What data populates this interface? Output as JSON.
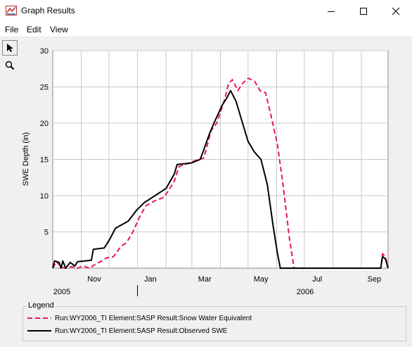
{
  "window": {
    "title": "Graph Results",
    "minimize_glyph": "—",
    "maximize_glyph": "☐",
    "close_glyph": "✕"
  },
  "menu": {
    "items": [
      "File",
      "Edit",
      "View"
    ]
  },
  "toolbar": {
    "tools": [
      "pointer-icon",
      "zoom-icon"
    ]
  },
  "colors": {
    "swe_series": "#e8194e",
    "observed_series": "#000000",
    "grid": "#c8c8c8"
  },
  "chart_data": {
    "type": "line",
    "ylabel": "SWE Depth (in)",
    "ylim": [
      0,
      30
    ],
    "yticks": [
      "5",
      "10",
      "15",
      "20",
      "25",
      "30"
    ],
    "x_range": [
      "2005-10-01",
      "2006-09-30"
    ],
    "x_month_ticks": [
      "Nov",
      "Jan",
      "Mar",
      "May",
      "Jul",
      "Sep"
    ],
    "x_year_labels": [
      "2005",
      "2006"
    ],
    "grid": true,
    "series": [
      {
        "name": "Run:WY2006_TI Element:SASP Result:Snow Water Equivalent",
        "style": "dashed",
        "points": [
          [
            "2005-10-01",
            0
          ],
          [
            "2005-10-05",
            0.9
          ],
          [
            "2005-10-10",
            0.2
          ],
          [
            "2005-10-14",
            0
          ],
          [
            "2005-10-22",
            0.2
          ],
          [
            "2005-10-28",
            0
          ],
          [
            "2005-11-03",
            0.3
          ],
          [
            "2005-11-10",
            0
          ],
          [
            "2005-11-17",
            0.6
          ],
          [
            "2005-11-22",
            0.9
          ],
          [
            "2005-11-28",
            1.4
          ],
          [
            "2005-12-06",
            1.6
          ],
          [
            "2005-12-14",
            3.0
          ],
          [
            "2005-12-20",
            3.5
          ],
          [
            "2005-12-27",
            5.0
          ],
          [
            "2006-01-03",
            7.0
          ],
          [
            "2006-01-10",
            8.6
          ],
          [
            "2006-01-20",
            9.3
          ],
          [
            "2006-01-30",
            9.8
          ],
          [
            "2006-02-10",
            12.0
          ],
          [
            "2006-02-15",
            14.0
          ],
          [
            "2006-02-28",
            14.6
          ],
          [
            "2006-03-06",
            14.9
          ],
          [
            "2006-03-14",
            15.2
          ],
          [
            "2006-03-22",
            19.0
          ],
          [
            "2006-03-28",
            20.0
          ],
          [
            "2006-04-05",
            23.0
          ],
          [
            "2006-04-10",
            25.5
          ],
          [
            "2006-04-14",
            26.0
          ],
          [
            "2006-04-20",
            24.5
          ],
          [
            "2006-04-25",
            25.5
          ],
          [
            "2006-05-01",
            26.2
          ],
          [
            "2006-05-08",
            25.8
          ],
          [
            "2006-05-14",
            24.5
          ],
          [
            "2006-05-20",
            24.2
          ],
          [
            "2006-05-26",
            21.0
          ],
          [
            "2006-06-02",
            17.0
          ],
          [
            "2006-06-08",
            11.5
          ],
          [
            "2006-06-15",
            4.0
          ],
          [
            "2006-06-20",
            0
          ],
          [
            "2006-09-22",
            0
          ],
          [
            "2006-09-24",
            2.0
          ],
          [
            "2006-09-27",
            1.6
          ],
          [
            "2006-09-30",
            0
          ]
        ]
      },
      {
        "name": "Run:WY2006_TI Element:SASP Result:Observed SWE",
        "style": "solid",
        "points": [
          [
            "2005-10-01",
            0
          ],
          [
            "2005-10-03",
            1.0
          ],
          [
            "2005-10-08",
            0.8
          ],
          [
            "2005-10-10",
            0
          ],
          [
            "2005-10-12",
            1.0
          ],
          [
            "2005-10-15",
            0
          ],
          [
            "2005-10-20",
            0.8
          ],
          [
            "2005-10-25",
            0.3
          ],
          [
            "2005-10-28",
            0.9
          ],
          [
            "2005-11-05",
            1.0
          ],
          [
            "2005-11-12",
            1.1
          ],
          [
            "2005-11-14",
            2.6
          ],
          [
            "2005-11-26",
            2.8
          ],
          [
            "2005-12-02",
            4.0
          ],
          [
            "2005-12-08",
            5.5
          ],
          [
            "2005-12-15",
            6.0
          ],
          [
            "2005-12-22",
            6.5
          ],
          [
            "2005-12-31",
            8.0
          ],
          [
            "2006-01-08",
            9.0
          ],
          [
            "2006-01-20",
            10.0
          ],
          [
            "2006-02-01",
            11.0
          ],
          [
            "2006-02-10",
            13.0
          ],
          [
            "2006-02-13",
            14.3
          ],
          [
            "2006-02-28",
            14.5
          ],
          [
            "2006-03-10",
            15.0
          ],
          [
            "2006-03-13",
            16.0
          ],
          [
            "2006-03-20",
            18.5
          ],
          [
            "2006-03-25",
            20.0
          ],
          [
            "2006-04-03",
            22.5
          ],
          [
            "2006-04-08",
            23.5
          ],
          [
            "2006-04-12",
            24.5
          ],
          [
            "2006-04-18",
            23.0
          ],
          [
            "2006-04-25",
            20.0
          ],
          [
            "2006-05-01",
            17.5
          ],
          [
            "2006-05-08",
            16.0
          ],
          [
            "2006-05-15",
            15.0
          ],
          [
            "2006-05-22",
            11.5
          ],
          [
            "2006-05-28",
            6.0
          ],
          [
            "2006-06-02",
            2.0
          ],
          [
            "2006-06-05",
            0
          ],
          [
            "2006-09-22",
            0
          ],
          [
            "2006-09-24",
            1.6
          ],
          [
            "2006-09-27",
            1.3
          ],
          [
            "2006-09-30",
            0
          ]
        ]
      }
    ]
  },
  "legend": {
    "title": "Legend",
    "entries": [
      "Run:WY2006_TI Element:SASP Result:Snow Water Equivalent",
      "Run:WY2006_TI Element:SASP Result:Observed SWE"
    ]
  }
}
